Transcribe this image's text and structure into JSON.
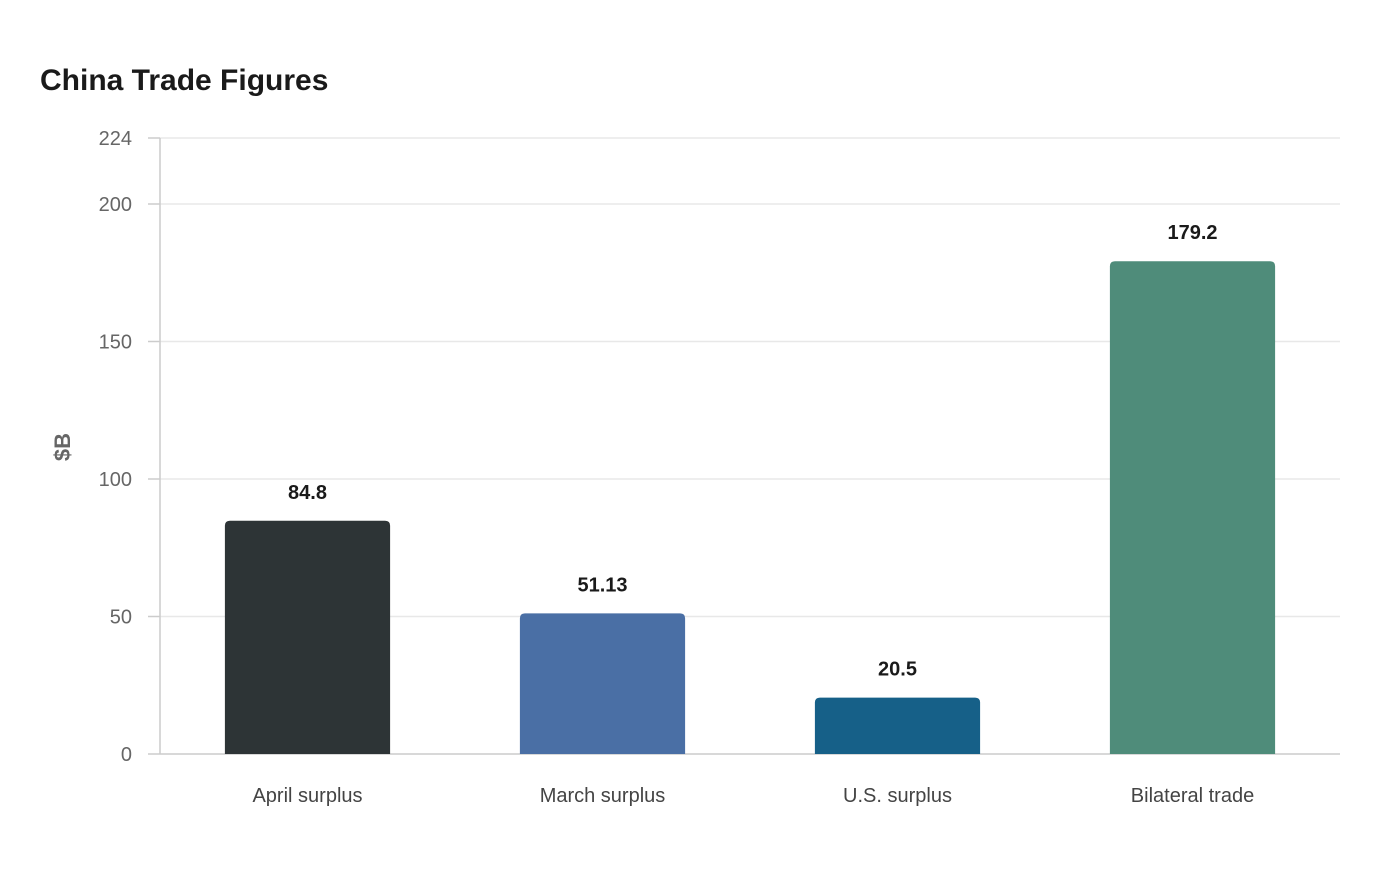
{
  "chart_data": {
    "type": "bar",
    "title": "China Trade Figures",
    "xlabel": "",
    "ylabel": "$B",
    "categories": [
      "April surplus",
      "March surplus",
      "U.S. surplus",
      "Bilateral trade"
    ],
    "values": [
      84.8,
      51.13,
      20.5,
      179.2
    ],
    "value_labels": [
      "84.8",
      "51.13",
      "20.5",
      "179.2"
    ],
    "colors": [
      "#2d3436",
      "#4a6fa5",
      "#166088",
      "#4f8c7a"
    ],
    "ylim": [
      0,
      224
    ],
    "yticks": [
      0,
      50,
      100,
      150,
      200,
      224
    ],
    "grid": true,
    "legend": "none"
  }
}
